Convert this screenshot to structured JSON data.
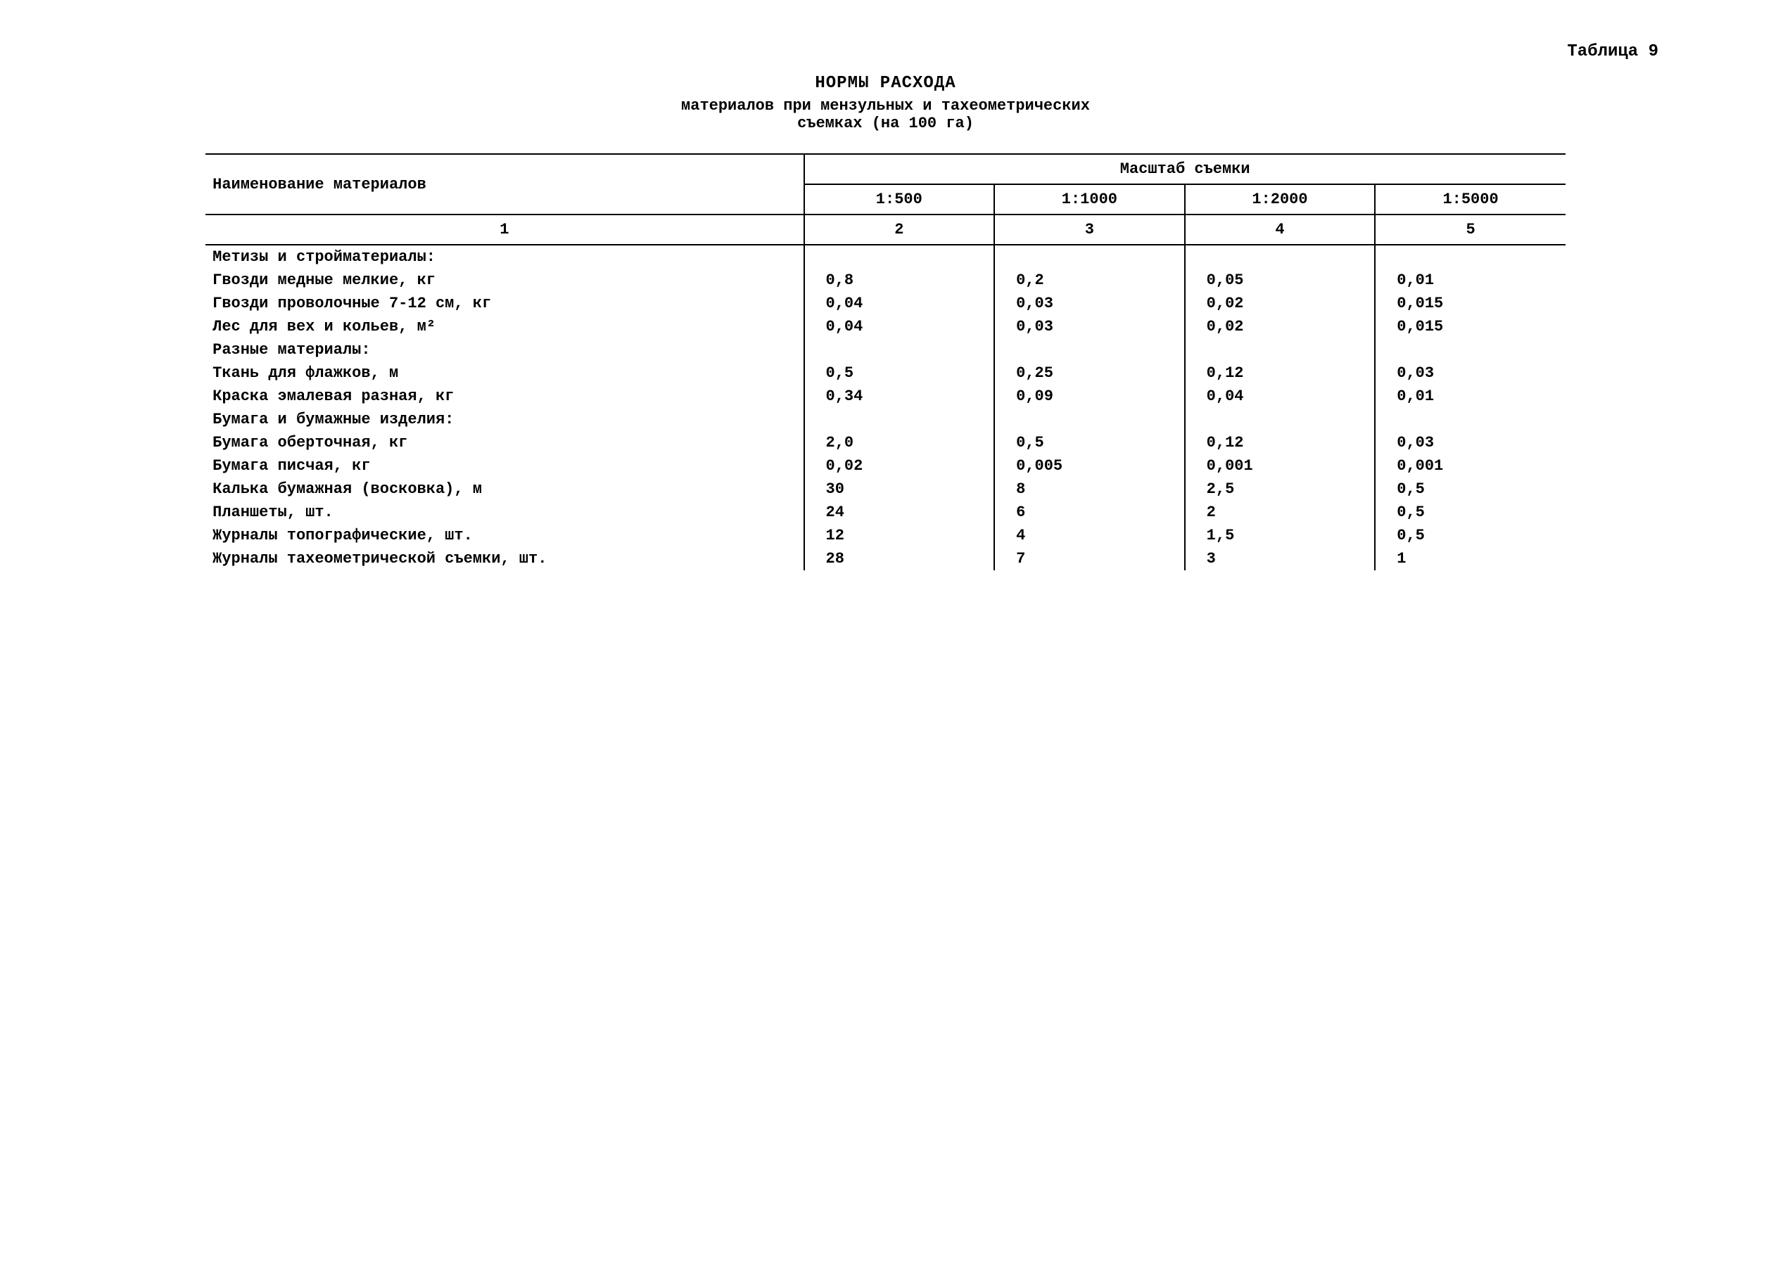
{
  "table_label": "Таблица 9",
  "title": {
    "main": "НОРМЫ РАСХОДА",
    "sub1": "материалов при мензульных и тахеометрических",
    "sub2": "съемках (на 100 га)"
  },
  "headers": {
    "name": "Наименование материалов",
    "scale_group": "Масштаб съемки",
    "scales": [
      "1:500",
      "1:1000",
      "1:2000",
      "1:5000"
    ],
    "col_nums": [
      "1",
      "2",
      "3",
      "4",
      "5"
    ]
  },
  "rows": [
    {
      "label": "Метизы и стройматериалы:",
      "values": [
        "",
        "",
        "",
        ""
      ],
      "section": true
    },
    {
      "label": "Гвозди медные мелкие, кг",
      "values": [
        "0,8",
        "0,2",
        "0,05",
        "0,01"
      ]
    },
    {
      "label": "Гвозди проволочные 7-12 см, кг",
      "values": [
        "0,04",
        "0,03",
        "0,02",
        "0,015"
      ]
    },
    {
      "label": "Лес для вех и кольев, м²",
      "values": [
        "0,04",
        "0,03",
        "0,02",
        "0,015"
      ]
    },
    {
      "label": "Разные материалы:",
      "values": [
        "",
        "",
        "",
        ""
      ],
      "section": true
    },
    {
      "label": "Ткань для флажков, м",
      "values": [
        "0,5",
        "0,25",
        "0,12",
        "0,03"
      ]
    },
    {
      "label": "Краска эмалевая разная, кг",
      "values": [
        "0,34",
        "0,09",
        "0,04",
        "0,01"
      ]
    },
    {
      "label": "Бумага и бумажные изделия:",
      "values": [
        "",
        "",
        "",
        ""
      ],
      "section": true
    },
    {
      "label": "Бумага оберточная, кг",
      "values": [
        "2,0",
        "0,5",
        "0,12",
        "0,03"
      ]
    },
    {
      "label": "Бумага писчая, кг",
      "values": [
        "0,02",
        "0,005",
        "0,001",
        "0,001"
      ]
    },
    {
      "label": "Калька бумажная (восковка), м",
      "values": [
        "30",
        "8",
        "2,5",
        "0,5"
      ]
    },
    {
      "label": "Планшеты, шт.",
      "values": [
        "24",
        "6",
        "2",
        "0,5"
      ]
    },
    {
      "label": "Журналы топографические, шт.",
      "values": [
        "12",
        "4",
        "1,5",
        "0,5"
      ]
    },
    {
      "label": "Журналы тахеометрической съемки, шт.",
      "values": [
        "28",
        "7",
        "3",
        "1"
      ]
    }
  ]
}
